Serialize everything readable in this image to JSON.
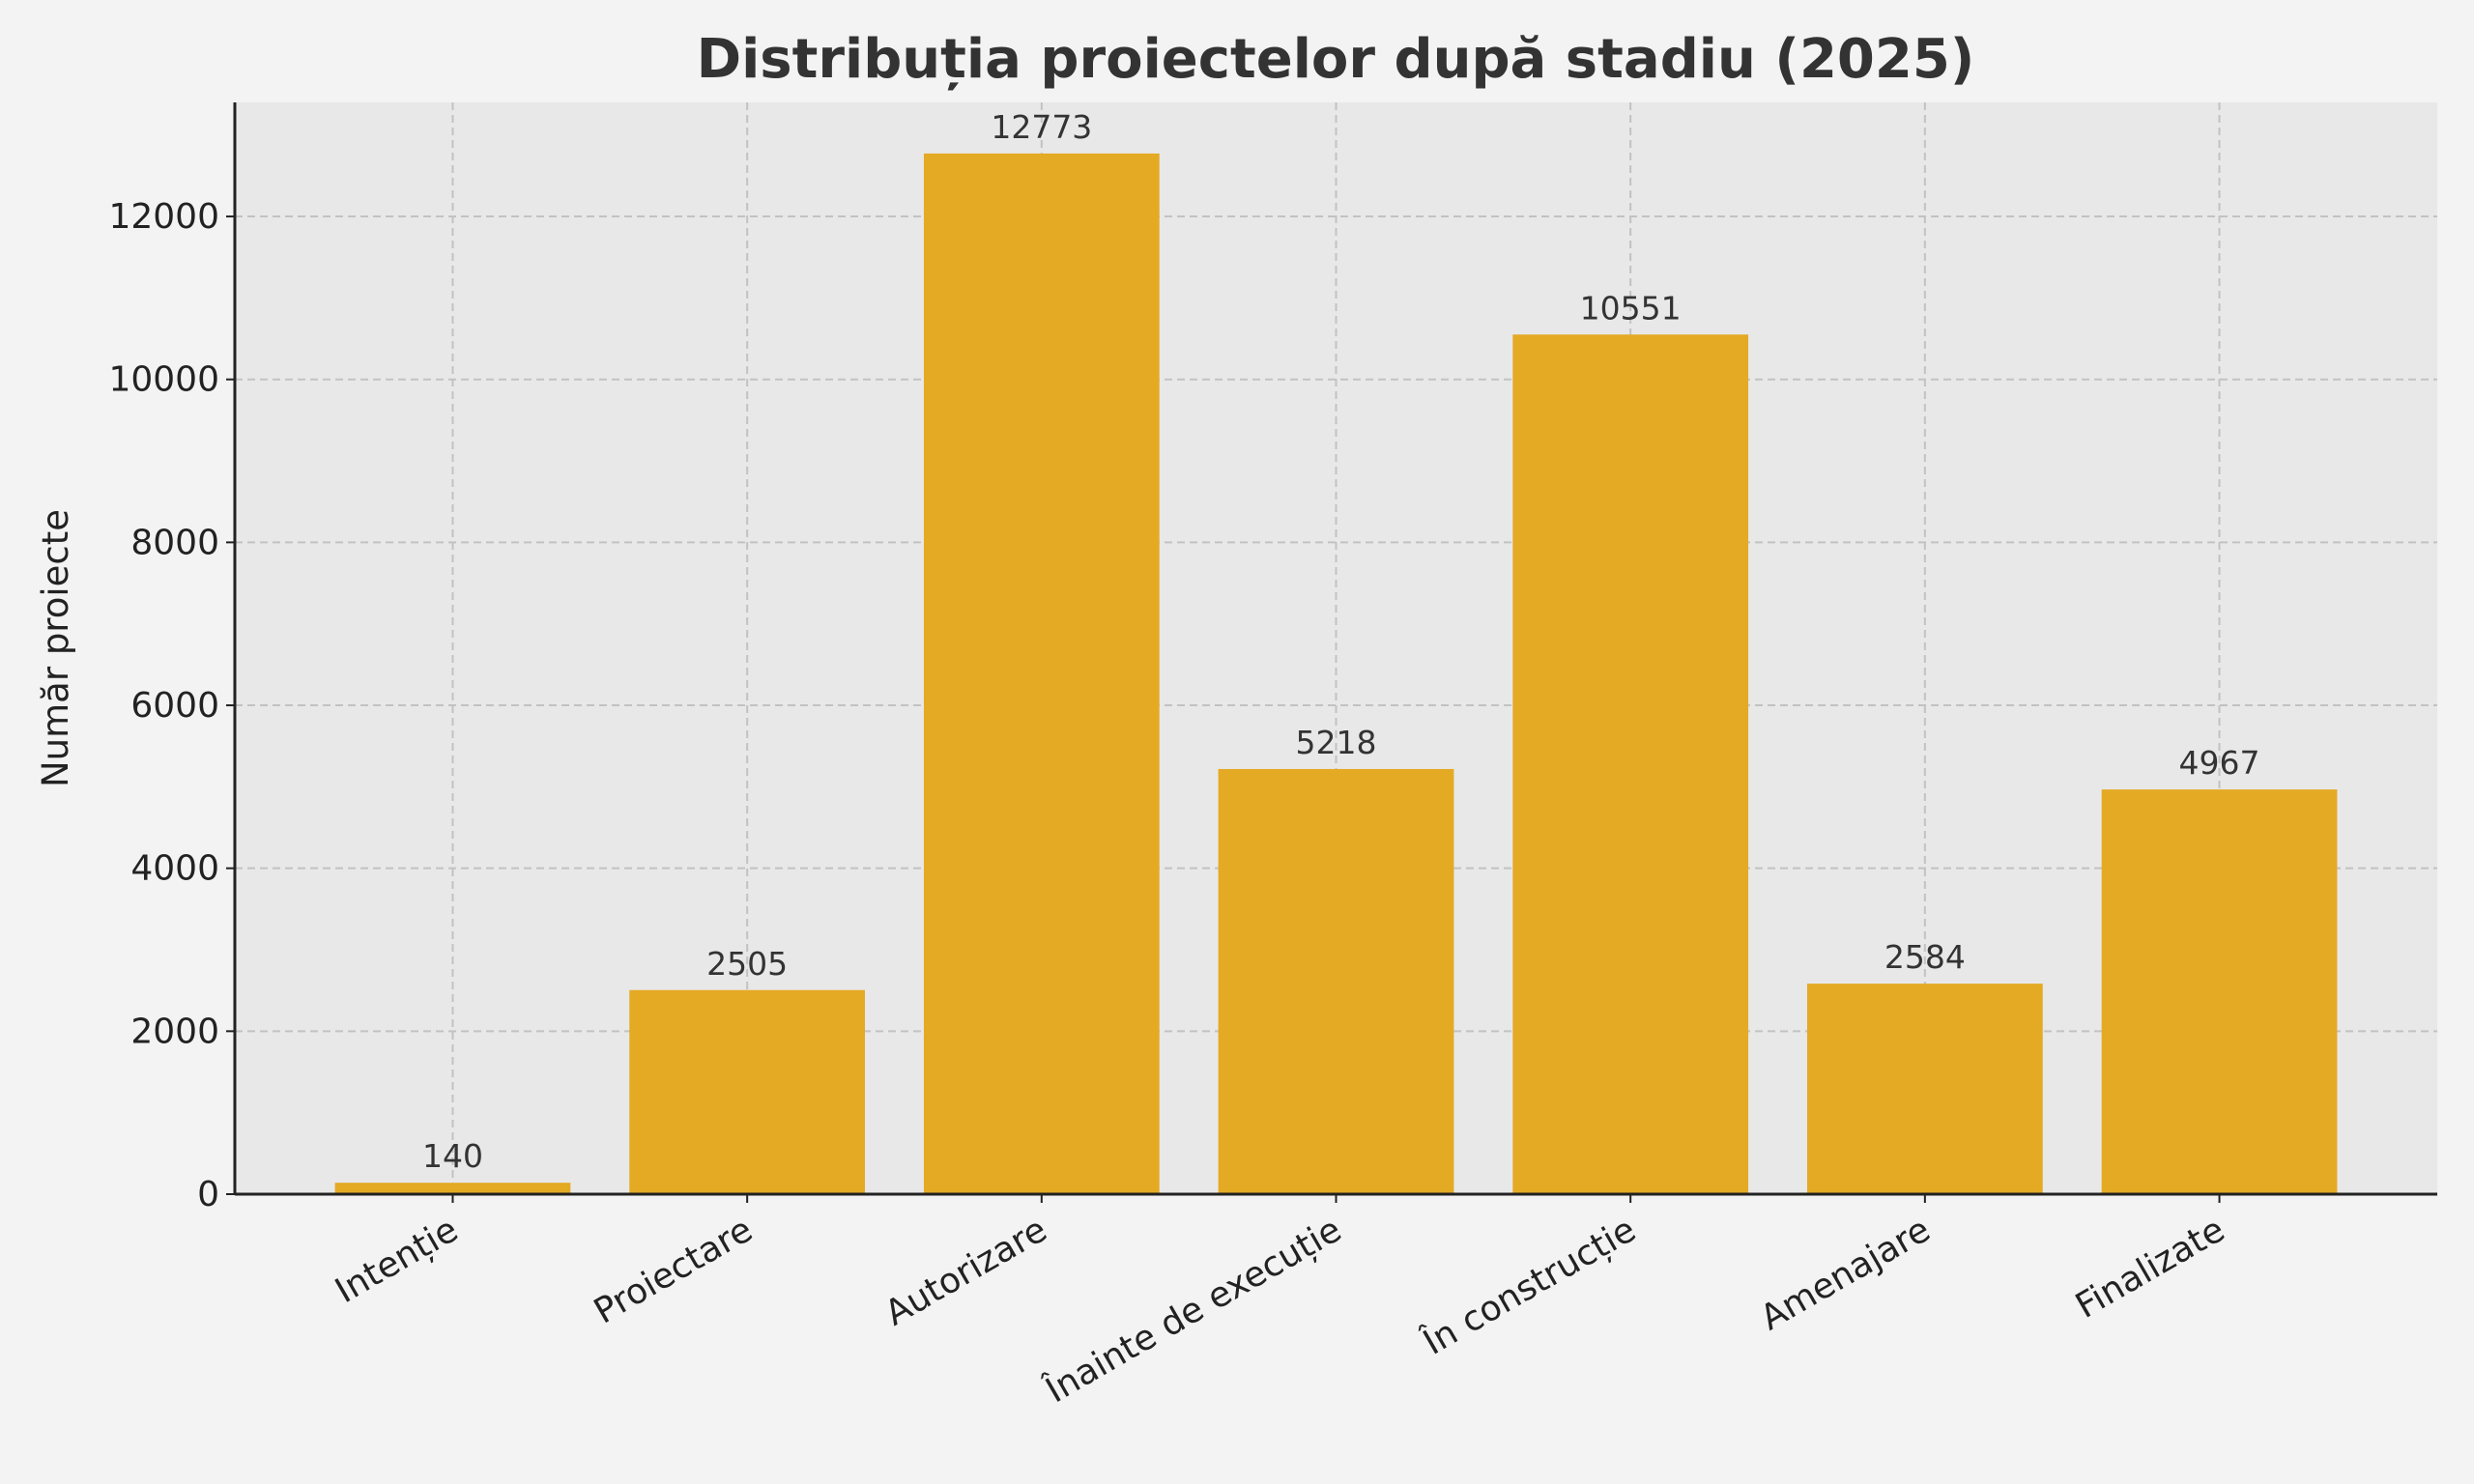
{
  "chart_data": {
    "type": "bar",
    "title": "Distribuția proiectelor după stadiu (2025)",
    "xlabel": "",
    "ylabel": "Număr proiecte",
    "categories": [
      "Intenție",
      "Proiectare",
      "Autorizare",
      "Înainte de execuție",
      "În construcție",
      "Amenajare",
      "Finalizate"
    ],
    "values": [
      140,
      2505,
      12773,
      5218,
      10551,
      2584,
      4967
    ],
    "ylim": [
      0,
      13400
    ],
    "yticks": [
      0,
      2000,
      4000,
      6000,
      8000,
      10000,
      12000
    ],
    "grid": true,
    "legend": "none",
    "colors": {
      "bar": "#e4aa24",
      "plot_bg": "#e8e8e8",
      "page_bg": "#f3f3f3",
      "grid": "#c2c2c2"
    }
  }
}
